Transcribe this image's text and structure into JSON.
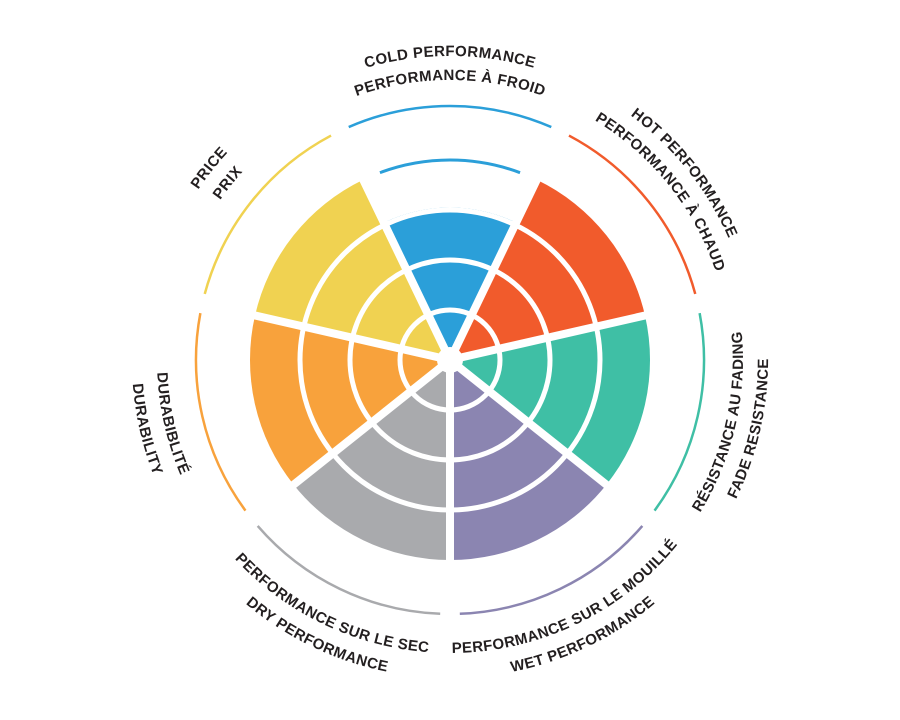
{
  "page": {
    "background": "#FFFFFF",
    "text_color": "#231F20"
  },
  "chart_data": {
    "type": "bar",
    "coordinate": "polar",
    "title": "",
    "scale_min": 0,
    "scale_max": 5,
    "grid": "white concentric ring dividers every level, white radial dividers between segments",
    "legend_position": "labels curved around outer rim, each underlined by an arc in its segment color",
    "categories": [
      "COLD PERFORMANCE / PERFORMANCE À FROID",
      "HOT PERFORMANCE / PERFORMANCE À CHAUD",
      "RÉSISTANCE AU FADING / FADE RESISTANCE",
      "PERFORMANCE SUR LE MOUILLÉ / WET PERFORMANCE",
      "PERFORMANCE SUR LE SEC / DRY PERFORMANCE",
      "DURABIBLITÉ / DURABILITY",
      "PRICE / PRIX"
    ],
    "values": [
      3,
      4,
      4,
      4,
      4,
      4,
      4
    ],
    "segments": [
      {
        "id": "cold-performance",
        "lines": [
          "COLD PERFORMANCE",
          "PERFORMANCE À FROID"
        ],
        "color": "#2B9FD9",
        "fill_level": 3,
        "marker_arc_level": 4
      },
      {
        "id": "hot-performance",
        "lines": [
          "HOT PERFORMANCE",
          "PERFORMANCE À CHAUD"
        ],
        "color": "#F15B2C",
        "fill_level": 4,
        "marker_arc_level": null
      },
      {
        "id": "fade-resistance",
        "lines": [
          "RÉSISTANCE AU FADING",
          "FADE RESISTANCE"
        ],
        "color": "#3FBFA5",
        "fill_level": 4,
        "marker_arc_level": null
      },
      {
        "id": "wet-performance",
        "lines": [
          "PERFORMANCE SUR LE MOUILLÉ",
          "WET PERFORMANCE"
        ],
        "color": "#8B85B1",
        "fill_level": 4,
        "marker_arc_level": null
      },
      {
        "id": "dry-performance",
        "lines": [
          "PERFORMANCE SUR LE SEC",
          "DRY PERFORMANCE"
        ],
        "color": "#A9AAAD",
        "fill_level": 4,
        "marker_arc_level": null
      },
      {
        "id": "durability",
        "lines": [
          "DURABIBLITÉ",
          "DURABILITY"
        ],
        "color": "#F8A23C",
        "fill_level": 4,
        "marker_arc_level": null
      },
      {
        "id": "price",
        "lines": [
          "PRICE",
          "PRIX"
        ],
        "color": "#F0D251",
        "fill_level": 4,
        "marker_arc_level": null
      }
    ]
  }
}
